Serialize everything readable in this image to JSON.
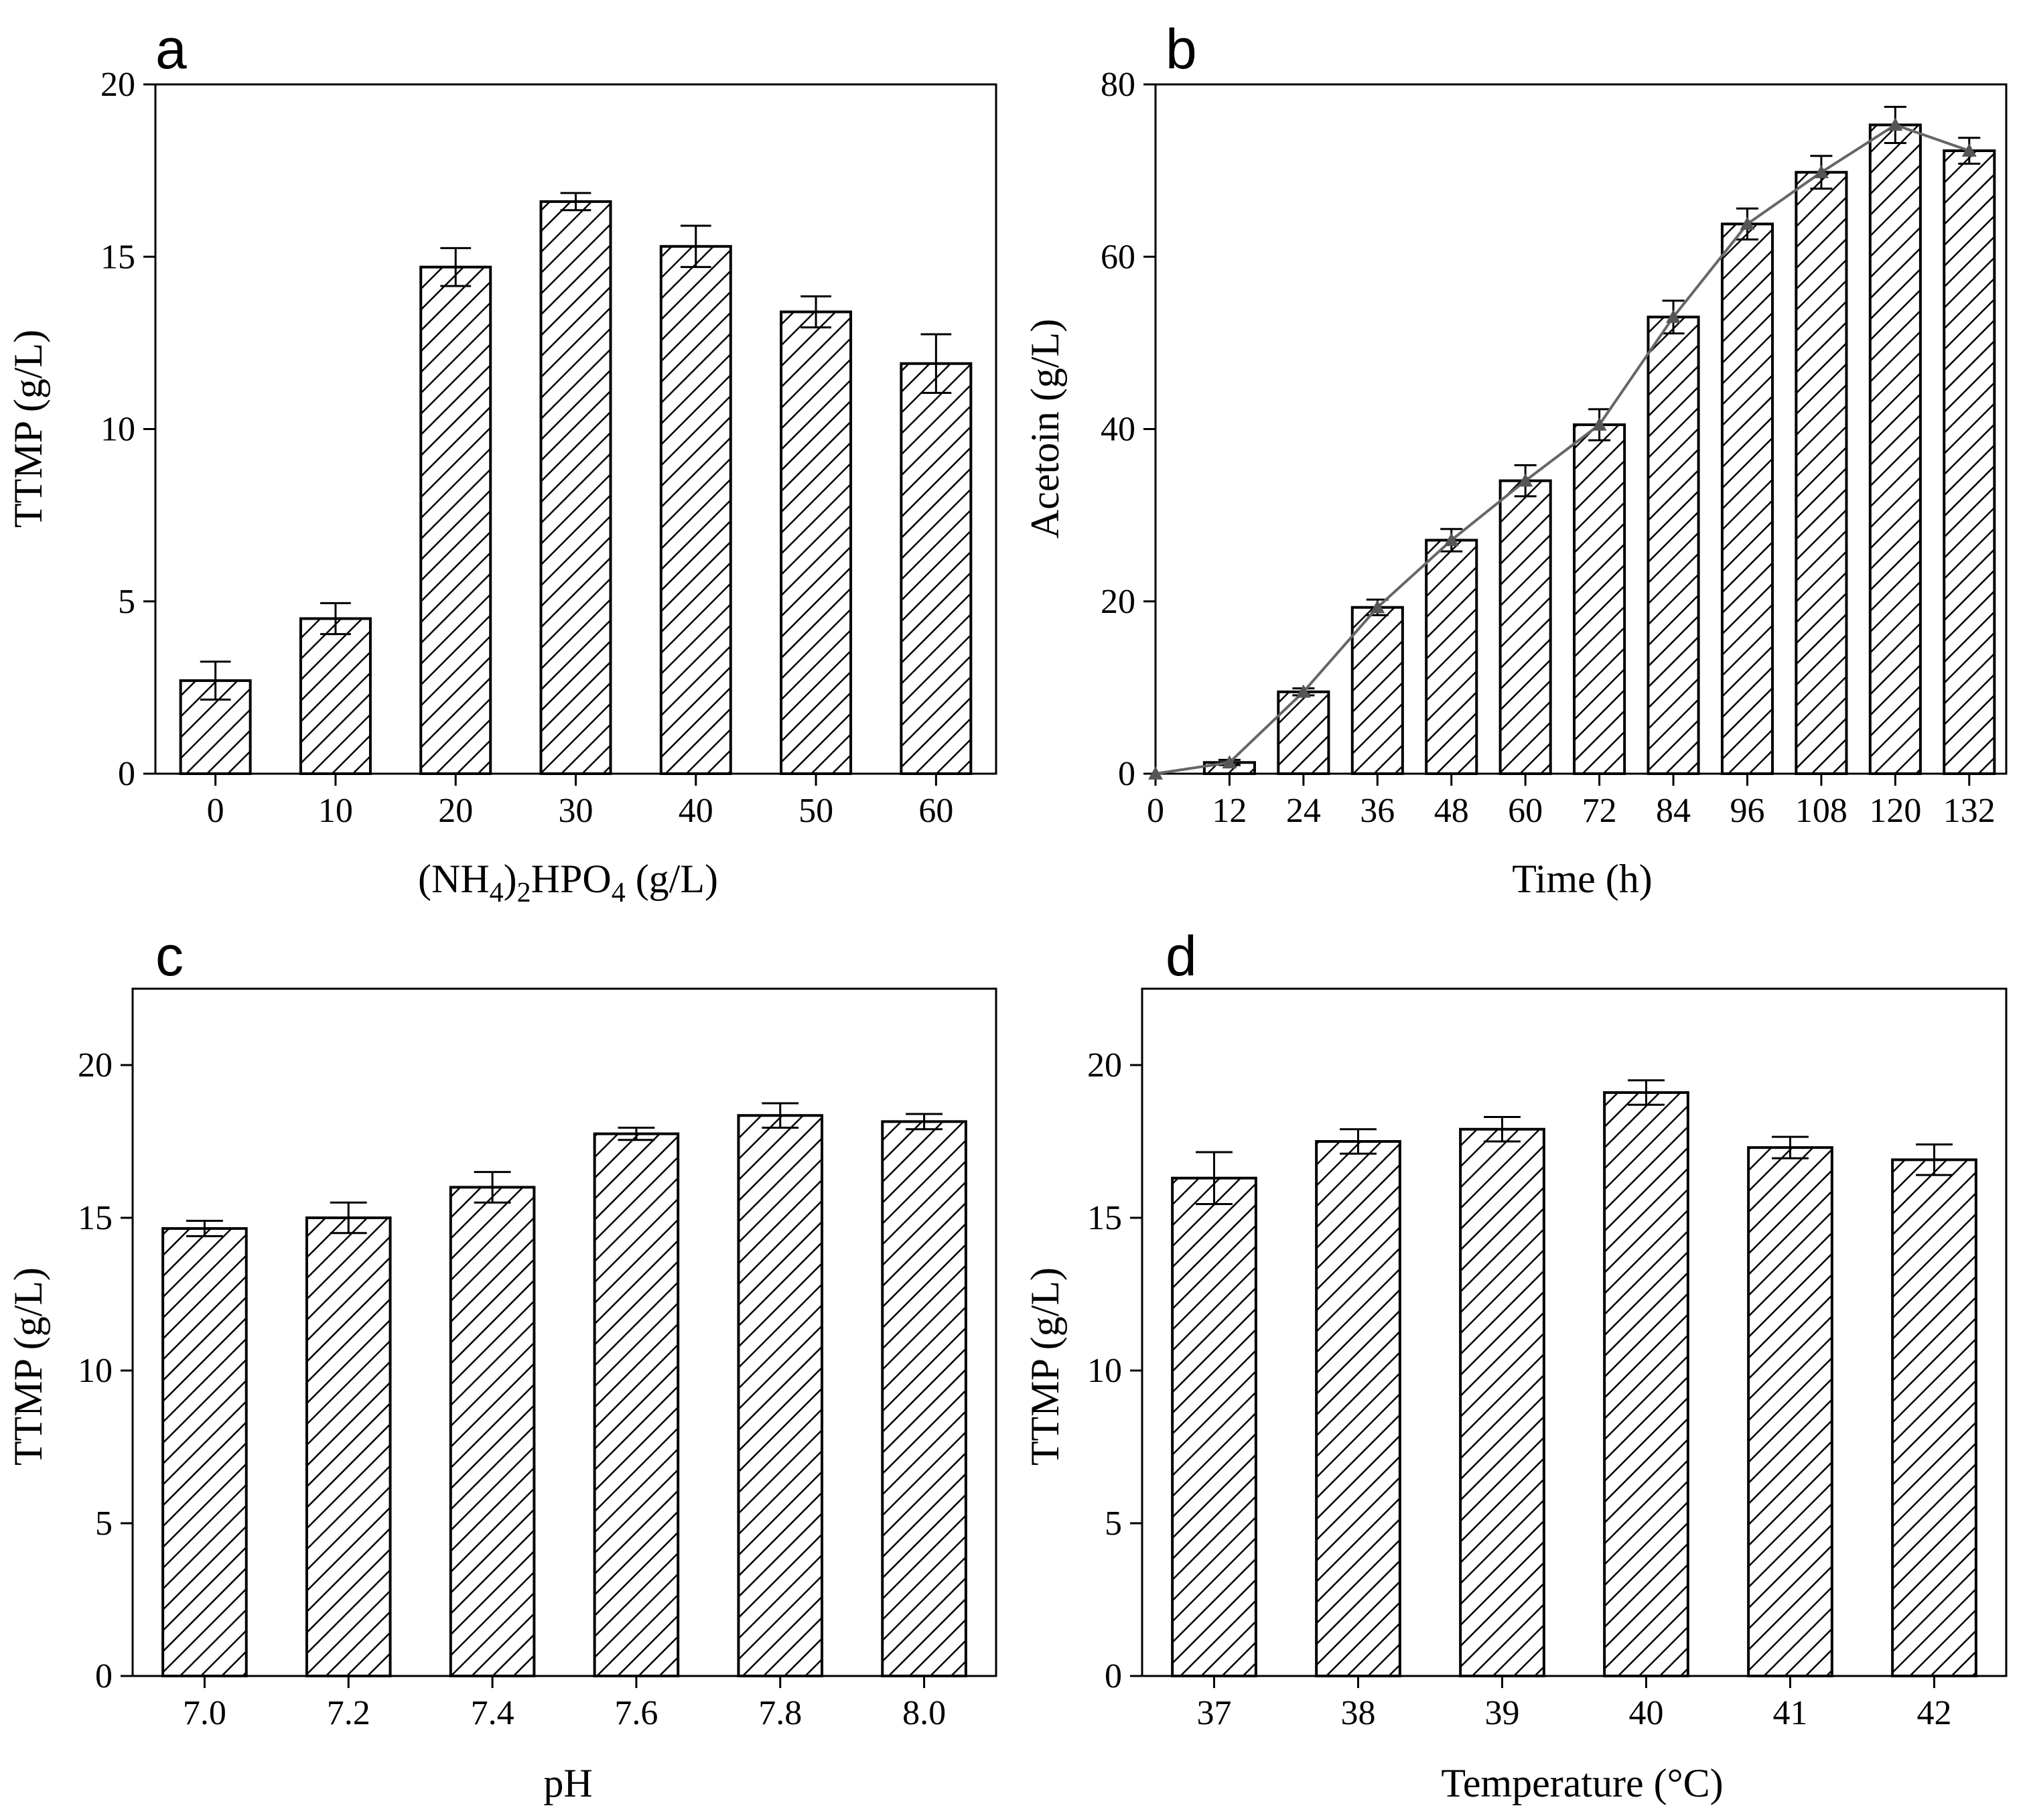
{
  "colors": {
    "bar_fill": "#ffffff",
    "hatch": "#000000",
    "line": "#666666",
    "marker": "#555555"
  },
  "chart_data": [
    {
      "panel": "a",
      "type": "bar",
      "categories": [
        "0",
        "10",
        "20",
        "30",
        "40",
        "50",
        "60"
      ],
      "values": [
        2.7,
        4.5,
        14.7,
        16.6,
        15.3,
        13.4,
        11.9
      ],
      "errors": [
        0.55,
        0.45,
        0.55,
        0.25,
        0.6,
        0.45,
        0.85
      ],
      "xlabel": {
        "main": "(NH",
        "sub1": "4",
        "mid": ")",
        "sub2": "2",
        "mid2": "HPO",
        "sub3": "4",
        "tail": " (g/L)"
      },
      "ylabel": "TTMP (g/L)",
      "ylim": [
        0,
        20
      ],
      "yticks": [
        "0",
        "5",
        "10",
        "15",
        "20"
      ]
    },
    {
      "panel": "b",
      "type": "bar",
      "categories": [
        "12",
        "24",
        "36",
        "48",
        "60",
        "72",
        "84",
        "96",
        "108",
        "120",
        "132"
      ],
      "values": [
        1.3,
        9.5,
        19.3,
        27.1,
        34.0,
        40.5,
        53.0,
        63.8,
        69.8,
        75.3,
        72.3
      ],
      "errors": [
        0.3,
        0.4,
        0.9,
        1.3,
        1.8,
        1.8,
        1.9,
        1.8,
        1.9,
        2.1,
        1.5
      ],
      "line": {
        "x": [
          0,
          12,
          24,
          36,
          48,
          60,
          72,
          84,
          96,
          108,
          120,
          132
        ],
        "y": [
          0,
          1.3,
          9.5,
          19.3,
          27.1,
          34.0,
          40.5,
          53.0,
          63.8,
          69.8,
          75.3,
          72.3
        ]
      },
      "xticks": [
        "0",
        "12",
        "24",
        "36",
        "48",
        "60",
        "72",
        "84",
        "96",
        "108",
        "120",
        "132"
      ],
      "xlabel": "Time (h)",
      "ylabel": "Acetoin (g/L)",
      "xlim": [
        0,
        138
      ],
      "ylim": [
        0,
        80
      ],
      "yticks": [
        "0",
        "20",
        "40",
        "60",
        "80"
      ]
    },
    {
      "panel": "c",
      "type": "bar",
      "categories": [
        "7.0",
        "7.2",
        "7.4",
        "7.6",
        "7.8",
        "8.0"
      ],
      "values": [
        14.65,
        15.0,
        16.0,
        17.75,
        18.35,
        18.15
      ],
      "errors": [
        0.25,
        0.5,
        0.5,
        0.2,
        0.4,
        0.25
      ],
      "xlabel": "pH",
      "ylabel": "TTMP (g/L)",
      "ylim": [
        0,
        22.5
      ],
      "yticks": [
        "0",
        "5",
        "10",
        "15",
        "20"
      ]
    },
    {
      "panel": "d",
      "type": "bar",
      "categories": [
        "37",
        "38",
        "39",
        "40",
        "41",
        "42"
      ],
      "values": [
        16.3,
        17.5,
        17.9,
        19.1,
        17.3,
        16.9
      ],
      "errors": [
        0.85,
        0.4,
        0.4,
        0.4,
        0.35,
        0.5
      ],
      "xlabel": "Temperature (°C)",
      "ylabel": "TTMP (g/L)",
      "ylim": [
        0,
        22.5
      ],
      "yticks": [
        "0",
        "5",
        "10",
        "15",
        "20"
      ]
    }
  ]
}
